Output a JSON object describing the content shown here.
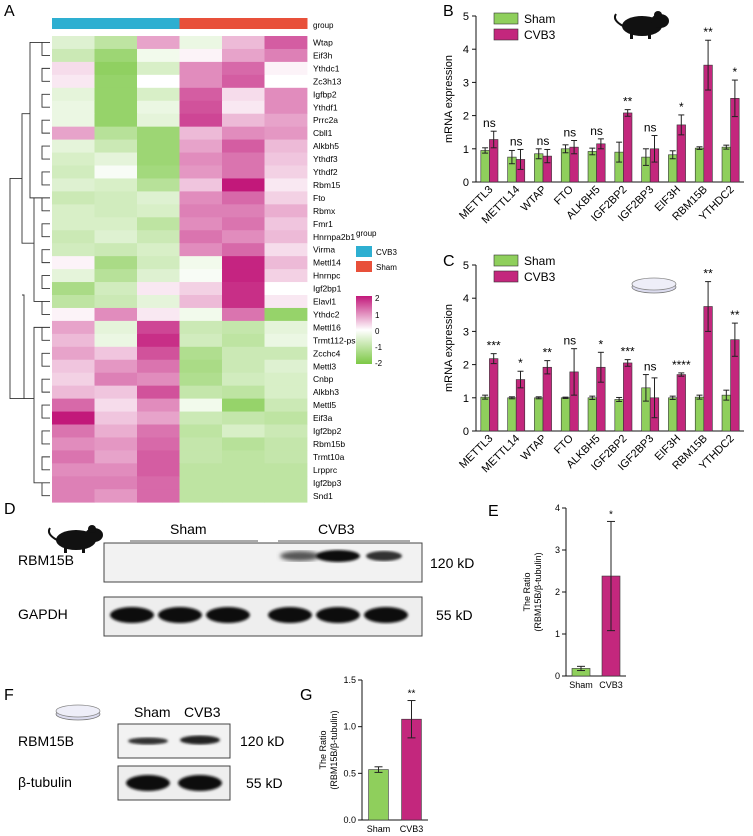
{
  "panel_letters": {
    "A": "A",
    "B": "B",
    "C": "C",
    "D": "D",
    "E": "E",
    "F": "F",
    "G": "G"
  },
  "colors": {
    "cvb3": "#c3277d",
    "sham": "#8fcf5c",
    "group_cvb3": "#2eafd1",
    "group_sham": "#e8503a",
    "heat_high": "#c2187a",
    "heat_mid": "#ffffff",
    "heat_low": "#7cc845"
  },
  "chart_data": [
    {
      "id": "A",
      "type": "heatmap",
      "column_group_label": "group",
      "columns": [
        "CVB3",
        "CVB3",
        "CVB3",
        "Sham",
        "Sham",
        "Sham"
      ],
      "rows": [
        "Wtap",
        "Eif3h",
        "Ythdc1",
        "Zc3h13",
        "Igfbp2",
        "Ythdf1",
        "Prrc2a",
        "Cbll1",
        "Alkbh5",
        "Ythdf3",
        "Ythdf2",
        "Rbm15",
        "Fto",
        "Rbmx",
        "Fmr1",
        "Hnrnpa2b1",
        "Virma",
        "Mettl14",
        "Hnrnpc",
        "Igf2bp1",
        "Elavl1",
        "Ythdc2",
        "Mettl16",
        "Trmt112-ps1",
        "Zcchc4",
        "Mettl3",
        "Cnbp",
        "Alkbh3",
        "Mettl5",
        "Eif3a",
        "Igf2bp2",
        "Rbm15b",
        "Trmt10a",
        "Lrpprc",
        "Igf2bp3",
        "Snd1"
      ],
      "values": [
        [
          -0.5,
          -1.0,
          0.8,
          -0.3,
          0.6,
          1.4
        ],
        [
          -0.8,
          -1.5,
          -0.2,
          0.1,
          0.8,
          1.1
        ],
        [
          0.3,
          -1.7,
          -0.6,
          1.0,
          1.3,
          0.1
        ],
        [
          0.2,
          -1.6,
          0.0,
          1.0,
          1.4,
          0.0
        ],
        [
          -0.4,
          -1.6,
          -0.6,
          1.4,
          0.3,
          1.0
        ],
        [
          -0.3,
          -1.6,
          -0.3,
          1.5,
          0.2,
          1.0
        ],
        [
          -0.3,
          -1.6,
          -0.4,
          1.6,
          0.6,
          0.8
        ],
        [
          0.8,
          -1.1,
          -1.5,
          0.6,
          1.0,
          0.9
        ],
        [
          -0.4,
          -0.8,
          -1.5,
          0.8,
          1.4,
          0.6
        ],
        [
          -0.6,
          -0.4,
          -1.5,
          1.0,
          1.2,
          0.5
        ],
        [
          -0.7,
          -0.1,
          -1.4,
          0.9,
          1.2,
          0.4
        ],
        [
          -0.5,
          -0.6,
          -1.1,
          0.5,
          2.0,
          0.2
        ],
        [
          -0.8,
          -0.7,
          -0.5,
          1.0,
          1.3,
          0.4
        ],
        [
          -0.6,
          -0.7,
          -0.6,
          1.1,
          1.1,
          0.7
        ],
        [
          -0.6,
          -0.6,
          -1.0,
          1.0,
          1.2,
          0.5
        ],
        [
          -0.8,
          -0.5,
          -0.8,
          1.2,
          1.0,
          0.6
        ],
        [
          -0.7,
          -0.8,
          -0.6,
          1.0,
          1.3,
          0.3
        ],
        [
          0.1,
          -1.3,
          -0.7,
          -0.2,
          1.9,
          0.6
        ],
        [
          -0.4,
          -1.1,
          -0.5,
          -0.1,
          1.9,
          0.4
        ],
        [
          -1.3,
          -0.7,
          0.2,
          0.4,
          1.8,
          0.0
        ],
        [
          -1.0,
          -0.8,
          -0.4,
          0.6,
          1.8,
          0.2
        ],
        [
          0.1,
          1.0,
          0.2,
          -0.2,
          1.2,
          -1.6
        ],
        [
          0.8,
          -0.4,
          1.6,
          -0.8,
          -0.9,
          -0.4
        ],
        [
          0.6,
          -0.3,
          1.8,
          -0.7,
          -1.0,
          -0.3
        ],
        [
          0.8,
          0.5,
          1.5,
          -1.2,
          -0.8,
          -0.8
        ],
        [
          0.5,
          0.9,
          1.2,
          -1.3,
          -0.8,
          -0.5
        ],
        [
          0.4,
          1.1,
          1.0,
          -1.2,
          -0.7,
          -0.6
        ],
        [
          0.6,
          0.5,
          1.5,
          -0.9,
          -1.0,
          -0.6
        ],
        [
          1.3,
          0.3,
          1.0,
          -0.2,
          -1.6,
          -0.8
        ],
        [
          2.0,
          0.5,
          0.8,
          -0.8,
          -0.9,
          -1.0
        ],
        [
          1.2,
          0.7,
          1.2,
          -1.0,
          -0.6,
          -0.8
        ],
        [
          1.0,
          0.9,
          1.3,
          -0.9,
          -1.1,
          -0.9
        ],
        [
          1.2,
          0.8,
          1.4,
          -0.9,
          -1.0,
          -0.9
        ],
        [
          1.0,
          1.0,
          1.4,
          -1.0,
          -1.0,
          -1.0
        ],
        [
          1.1,
          1.1,
          1.3,
          -1.0,
          -1.0,
          -1.0
        ],
        [
          1.1,
          0.9,
          1.3,
          -1.0,
          -1.0,
          -1.0
        ]
      ],
      "legend": {
        "title": "group",
        "items": [
          "CVB3",
          "Sham"
        ],
        "scale_ticks": [
          "2",
          "1",
          "0",
          "-1",
          "-2"
        ],
        "range": [
          -2,
          2
        ]
      }
    },
    {
      "id": "B",
      "type": "bar",
      "ylabel": "mRNA expression",
      "ylim": [
        0,
        5
      ],
      "yticks": [
        0,
        1,
        2,
        3,
        4,
        5
      ],
      "categories": [
        "METTL3",
        "METTL14",
        "WTAP",
        "FTO",
        "ALKBH5",
        "IGF2BP2",
        "IGF2BP3",
        "EIF3H",
        "RBM15B",
        "YTHDC2"
      ],
      "series": [
        {
          "name": "Sham",
          "values": [
            0.95,
            0.75,
            0.85,
            1.0,
            0.92,
            0.9,
            0.75,
            0.82,
            1.02,
            1.05
          ],
          "errors": [
            0.08,
            0.2,
            0.15,
            0.12,
            0.1,
            0.3,
            0.25,
            0.12,
            0.04,
            0.06
          ]
        },
        {
          "name": "CVB3",
          "values": [
            1.28,
            0.68,
            0.78,
            1.05,
            1.15,
            2.08,
            1.0,
            1.72,
            3.52,
            2.52
          ],
          "errors": [
            0.25,
            0.3,
            0.2,
            0.2,
            0.15,
            0.1,
            0.4,
            0.3,
            0.75,
            0.55
          ]
        }
      ],
      "significance": [
        "ns",
        "ns",
        "ns",
        "ns",
        "ns",
        "**",
        "ns",
        "*",
        "**",
        "*"
      ]
    },
    {
      "id": "C",
      "type": "bar",
      "ylabel": "mRNA expression",
      "ylim": [
        0,
        5
      ],
      "yticks": [
        0,
        1,
        2,
        3,
        4,
        5
      ],
      "categories": [
        "METTL3",
        "METTL14",
        "WTAP",
        "FTO",
        "ALKBH5",
        "IGF2BP2",
        "IGF2BP3",
        "EIF3H",
        "RBM15B",
        "YTHDC2"
      ],
      "series": [
        {
          "name": "Sham",
          "values": [
            1.02,
            1.0,
            1.0,
            1.0,
            1.0,
            0.95,
            1.3,
            1.0,
            1.02,
            1.08
          ],
          "errors": [
            0.06,
            0.03,
            0.03,
            0.02,
            0.05,
            0.06,
            0.4,
            0.05,
            0.06,
            0.15
          ]
        },
        {
          "name": "CVB3",
          "values": [
            2.18,
            1.55,
            1.92,
            1.78,
            1.92,
            2.05,
            1.0,
            1.7,
            3.75,
            2.75
          ],
          "errors": [
            0.15,
            0.25,
            0.2,
            0.7,
            0.45,
            0.1,
            0.6,
            0.05,
            0.75,
            0.5
          ]
        }
      ],
      "significance": [
        "***",
        "*",
        "**",
        "ns",
        "*",
        "***",
        "ns",
        "****",
        "**",
        "**"
      ]
    },
    {
      "id": "E",
      "type": "bar",
      "ylabel": "The Ratio\n(RBM15B/β-tubulin)",
      "ylim": [
        0,
        4
      ],
      "yticks": [
        0,
        1,
        2,
        3,
        4
      ],
      "categories": [
        "Sham",
        "CVB3"
      ],
      "values": [
        0.18,
        2.38
      ],
      "errors": [
        0.05,
        1.3
      ],
      "significance": [
        "",
        "*"
      ]
    },
    {
      "id": "G",
      "type": "bar",
      "ylabel": "The Ratio\n(RBM15B/β-tubulin)",
      "ylim": [
        0,
        1.5
      ],
      "yticks": [
        "0.0",
        "0.5",
        "1.0",
        "1.5"
      ],
      "categories": [
        "Sham",
        "CVB3"
      ],
      "values": [
        0.54,
        1.08
      ],
      "errors": [
        0.03,
        0.2
      ],
      "significance": [
        "",
        "**"
      ]
    }
  ],
  "blot_D": {
    "groups": [
      "Sham",
      "CVB3"
    ],
    "bands": [
      "RBM15B",
      "GAPDH"
    ],
    "sizes": [
      "120 kD",
      "55 kD"
    ]
  },
  "blot_F": {
    "groups": [
      "Sham",
      "CVB3"
    ],
    "bands": [
      "RBM15B",
      "β-tubulin"
    ],
    "sizes": [
      "120 kD",
      "55 kD"
    ]
  }
}
